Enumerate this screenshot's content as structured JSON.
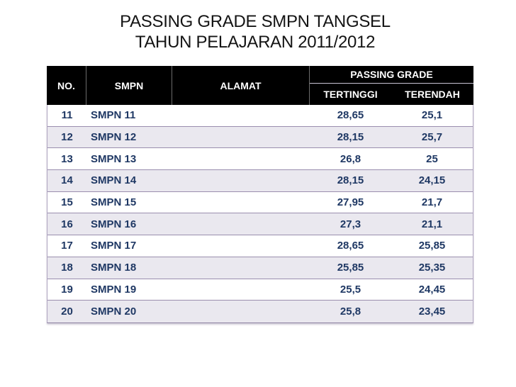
{
  "slide": {
    "title_line1": "PASSING GRADE SMPN TANGSEL",
    "title_line2": "TAHUN PELAJARAN 2011/2012"
  },
  "table": {
    "headers": {
      "no": "NO.",
      "smpn": "SMPN",
      "alamat": "ALAMAT",
      "passing_grade": "PASSING GRADE",
      "tertinggi": "TERTINGGI",
      "terendah": "TERENDAH"
    },
    "rows": [
      {
        "no": "11",
        "smpn": "SMPN 11",
        "alamat": "",
        "tertinggi": "28,65",
        "terendah": "25,1"
      },
      {
        "no": "12",
        "smpn": "SMPN 12",
        "alamat": "",
        "tertinggi": "28,15",
        "terendah": "25,7"
      },
      {
        "no": "13",
        "smpn": "SMPN 13",
        "alamat": "",
        "tertinggi": "26,8",
        "terendah": "25"
      },
      {
        "no": "14",
        "smpn": "SMPN 14",
        "alamat": "",
        "tertinggi": "28,15",
        "terendah": "24,15"
      },
      {
        "no": "15",
        "smpn": "SMPN 15",
        "alamat": "",
        "tertinggi": "27,95",
        "terendah": "21,7"
      },
      {
        "no": "16",
        "smpn": "SMPN 16",
        "alamat": "",
        "tertinggi": "27,3",
        "terendah": "21,1"
      },
      {
        "no": "17",
        "smpn": "SMPN 17",
        "alamat": "",
        "tertinggi": "28,65",
        "terendah": "25,85"
      },
      {
        "no": "18",
        "smpn": "SMPN 18",
        "alamat": "",
        "tertinggi": "25,85",
        "terendah": "25,35"
      },
      {
        "no": "19",
        "smpn": "SMPN 19",
        "alamat": "",
        "tertinggi": "25,5",
        "terendah": "24,45"
      },
      {
        "no": "20",
        "smpn": "SMPN 20",
        "alamat": "",
        "tertinggi": "25,8",
        "terendah": "23,45"
      }
    ]
  },
  "colors": {
    "slide_bg": "#ffffff",
    "title_text": "#141414",
    "header_bg": "#000000",
    "header_text": "#ffffff",
    "header_divider": "#6b6b6b",
    "header_subline": "#c9c4d6",
    "body_text": "#1f3864",
    "alt_row_bg": "#eae8ef",
    "row_border": "#9a8eae",
    "outer_border": "#b1a6c2",
    "outer_border_dark": "#8f83a3"
  }
}
